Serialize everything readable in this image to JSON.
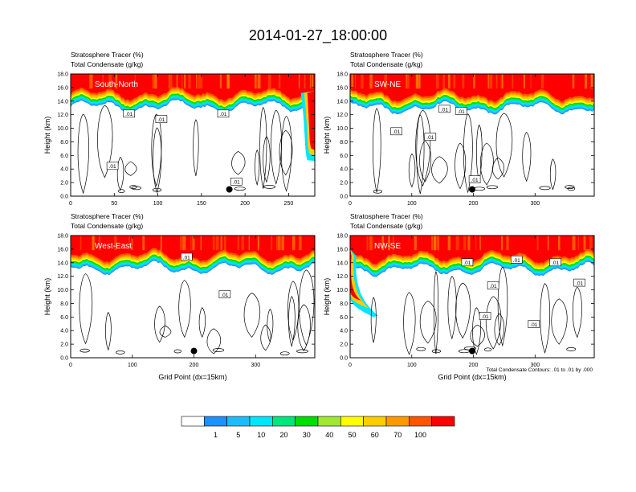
{
  "figure": {
    "title": "2014-01-27_18:00:00",
    "contour_note": "Total Condensate Contours: .01 to .01 by .000"
  },
  "chart_data": [
    {
      "type": "heatmap",
      "panel_label": "South-North",
      "header_line1": "Stratosphere Tracer   (%)",
      "header_line2": "Total Condensate   (g/kg)",
      "ylabel": "Height (km)",
      "xlabel": "",
      "xlim": [
        0,
        280
      ],
      "ylim": [
        0,
        18
      ],
      "xticks": [
        "0",
        "50",
        "100",
        "150",
        "200",
        "250"
      ],
      "xtick_values": [
        0,
        50,
        100,
        150,
        200,
        250
      ],
      "yticks": [
        "0.0",
        "2.0",
        "4.0",
        "6.0",
        "8.0",
        "10.0",
        "12.0",
        "14.0",
        "16.0",
        "18.0"
      ],
      "tropopause_km": 15.2,
      "contour_labels": [
        {
          "text": ".01",
          "x": 67,
          "y": 12.1
        },
        {
          "text": ".01",
          "x": 104,
          "y": 11.3
        },
        {
          "text": ".01",
          "x": 175,
          "y": 12.1
        },
        {
          "text": ".01",
          "x": 48,
          "y": 4.4
        },
        {
          "text": ".01",
          "x": 190,
          "y": 2.1
        }
      ],
      "dot": {
        "x": 182,
        "y": 1.0
      }
    },
    {
      "type": "heatmap",
      "panel_label": "SW-NE",
      "header_line1": "Stratosphere Tracer   (%)",
      "header_line2": "Total Condensate   (g/kg)",
      "ylabel": "Height (km)",
      "xlabel": "",
      "xlim": [
        0,
        396
      ],
      "ylim": [
        0,
        18
      ],
      "xticks": [
        "0",
        "100",
        "200",
        "300"
      ],
      "xtick_values": [
        0,
        100,
        200,
        300
      ],
      "yticks": [
        "0.0",
        "2.0",
        "4.0",
        "6.0",
        "8.0",
        "10.0",
        "12.0",
        "14.0",
        "16.0",
        "18.0"
      ],
      "tropopause_km": 15.0,
      "contour_labels": [
        {
          "text": ".01",
          "x": 153,
          "y": 12.8
        },
        {
          "text": ".01",
          "x": 180,
          "y": 12.5
        },
        {
          "text": ".01",
          "x": 75,
          "y": 9.5
        },
        {
          "text": ".01",
          "x": 130,
          "y": 8.7
        },
        {
          "text": ".01",
          "x": 202,
          "y": 2.4
        }
      ],
      "dot": {
        "x": 198,
        "y": 1.0
      }
    },
    {
      "type": "heatmap",
      "panel_label": "West-East",
      "header_line1": "Stratosphere Tracer   (%)",
      "header_line2": "Total Condensate   (g/kg)",
      "ylabel": "Height (km)",
      "xlabel": "Grid Point (dx=15km)",
      "xlim": [
        0,
        396
      ],
      "ylim": [
        0,
        18
      ],
      "xticks": [
        "0",
        "100",
        "200",
        "300"
      ],
      "xtick_values": [
        0,
        100,
        200,
        300
      ],
      "yticks": [
        "0.0",
        "2.0",
        "4.0",
        "6.0",
        "8.0",
        "10.0",
        "12.0",
        "14.0",
        "16.0",
        "18.0"
      ],
      "tropopause_km": 15.2,
      "contour_labels": [
        {
          "text": ".01",
          "x": 188,
          "y": 14.8
        },
        {
          "text": ".01",
          "x": 250,
          "y": 9.3
        }
      ],
      "dot": {
        "x": 200,
        "y": 1.0
      }
    },
    {
      "type": "heatmap",
      "panel_label": "NW-SE",
      "header_line1": "Stratosphere Tracer   (%)",
      "header_line2": "Total Condensate   (g/kg)",
      "ylabel": "Height (km)",
      "xlabel": "Grid Point (dx=15km)",
      "xlim": [
        0,
        396
      ],
      "ylim": [
        0,
        18
      ],
      "xticks": [
        "0",
        "100",
        "200",
        "300"
      ],
      "xtick_values": [
        0,
        100,
        200,
        300
      ],
      "yticks": [
        "0.0",
        "2.0",
        "4.0",
        "6.0",
        "8.0",
        "10.0",
        "12.0",
        "14.0",
        "16.0",
        "18.0"
      ],
      "tropopause_km": 15.0,
      "contour_labels": [
        {
          "text": ".01",
          "x": 270,
          "y": 14.4
        },
        {
          "text": ".01",
          "x": 190,
          "y": 14.0
        },
        {
          "text": ".01",
          "x": 333,
          "y": 14.0
        },
        {
          "text": ".01",
          "x": 372,
          "y": 11.0
        },
        {
          "text": ".01",
          "x": 232,
          "y": 10.6
        },
        {
          "text": ".01",
          "x": 219,
          "y": 6.1
        },
        {
          "text": ".01",
          "x": 298,
          "y": 4.9
        }
      ],
      "dot": {
        "x": 198,
        "y": 1.0
      }
    }
  ],
  "colorbar": {
    "ticks": [
      "1",
      "5",
      "10",
      "20",
      "30",
      "40",
      "50",
      "60",
      "70",
      "100"
    ],
    "colors": [
      "#ffffff",
      "#1e90ff",
      "#1ebcff",
      "#00e5ff",
      "#00e57e",
      "#00dd00",
      "#a0e632",
      "#ffff00",
      "#ffcc00",
      "#ff9900",
      "#ff5500",
      "#ff0000"
    ]
  }
}
